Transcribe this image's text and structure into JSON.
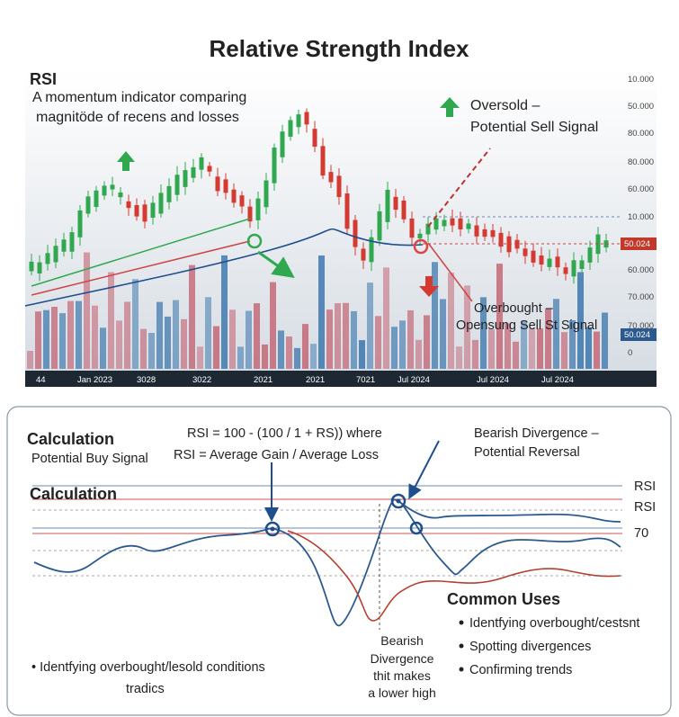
{
  "title": "Relative Strength Index",
  "top_panel": {
    "heading": "RSI",
    "description": [
      "A momentum indicator comparing",
      "magnitöde of recens and losses"
    ],
    "oversold": [
      "Oversold –",
      "Potential Sell Signal"
    ],
    "overbought": [
      "Overbought –",
      "Opensung Sell St Signal"
    ],
    "price_axis_labels": [
      "10.000",
      "50.000",
      "80.000",
      "80.000",
      "60.000",
      "10.000",
      "60.000",
      "70.000",
      "70.000",
      "0"
    ],
    "badges": [
      "50.024",
      "50.024"
    ],
    "time_axis_labels": [
      "44",
      "Jan 2023",
      "3028",
      "3022",
      "2021",
      "2021",
      "7021",
      "Jul 2024",
      "Jul 2024",
      "Jul 2024"
    ]
  },
  "bottom_panel": {
    "heading": "Calculation",
    "buy_signal": "Potential Buy Signal",
    "formula": [
      "RSI = 100 - (100 / 1 + RS)) where",
      "RSI = Average Gain / Average Loss"
    ],
    "divergence": [
      "Bearish Divergence –",
      "Potential Reversal"
    ],
    "subheading": "Calculation",
    "level_labels": [
      "RSI",
      "RSI",
      "70"
    ],
    "divergence_note": [
      "Bearish",
      "Divergence",
      "thit makes",
      "a lower high"
    ],
    "uses_title": "Common Uses",
    "uses": [
      "Identfying overbought/cestsnt",
      "Spotting divergences",
      "Confirming trends"
    ],
    "left_bullet": [
      "• Identfying overbought/lesold conditions",
      "tradics"
    ]
  }
}
